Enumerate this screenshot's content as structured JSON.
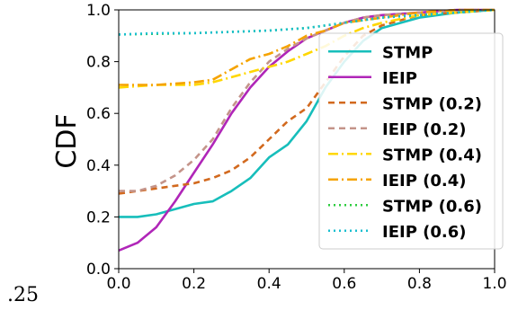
{
  "corner_text": ".25",
  "chart_data": {
    "type": "line",
    "xlabel": "",
    "ylabel": "CDF",
    "xlim": [
      0.0,
      1.0
    ],
    "ylim": [
      0.0,
      1.0
    ],
    "x_ticks": [
      "0.0",
      "0.2",
      "0.4",
      "0.6",
      "0.8",
      "1.0"
    ],
    "y_ticks": [
      "0.0",
      "0.2",
      "0.4",
      "0.6",
      "0.8",
      "1.0"
    ],
    "grid": false,
    "legend_position": "right",
    "series": [
      {
        "name": "STMP",
        "color": "#17bebb",
        "dash": "solid",
        "x": [
          0.0,
          0.05,
          0.1,
          0.15,
          0.2,
          0.25,
          0.3,
          0.35,
          0.4,
          0.45,
          0.5,
          0.55,
          0.6,
          0.65,
          0.7,
          0.8,
          0.9,
          1.0
        ],
        "y": [
          0.2,
          0.2,
          0.21,
          0.23,
          0.25,
          0.26,
          0.3,
          0.35,
          0.43,
          0.48,
          0.57,
          0.7,
          0.8,
          0.88,
          0.93,
          0.97,
          0.99,
          1.0
        ]
      },
      {
        "name": "IEIP",
        "color": "#b026b8",
        "dash": "solid",
        "x": [
          0.0,
          0.05,
          0.1,
          0.15,
          0.2,
          0.25,
          0.3,
          0.35,
          0.4,
          0.45,
          0.5,
          0.55,
          0.6,
          0.65,
          0.7,
          0.8,
          0.9,
          1.0
        ],
        "y": [
          0.07,
          0.1,
          0.16,
          0.26,
          0.37,
          0.48,
          0.6,
          0.7,
          0.78,
          0.84,
          0.89,
          0.92,
          0.95,
          0.97,
          0.98,
          0.99,
          1.0,
          1.0
        ]
      },
      {
        "name": "STMP (0.2)",
        "color": "#d2691e",
        "dash": "7,5",
        "x": [
          0.0,
          0.05,
          0.1,
          0.15,
          0.2,
          0.25,
          0.3,
          0.35,
          0.4,
          0.45,
          0.5,
          0.55,
          0.6,
          0.65,
          0.7,
          0.8,
          0.9,
          1.0
        ],
        "y": [
          0.29,
          0.3,
          0.31,
          0.32,
          0.33,
          0.35,
          0.38,
          0.43,
          0.5,
          0.57,
          0.62,
          0.72,
          0.82,
          0.9,
          0.94,
          0.98,
          0.99,
          1.0
        ]
      },
      {
        "name": "IEIP (0.2)",
        "color": "#c4948a",
        "dash": "7,5",
        "x": [
          0.0,
          0.05,
          0.1,
          0.15,
          0.2,
          0.25,
          0.3,
          0.35,
          0.4,
          0.45,
          0.5,
          0.55,
          0.6,
          0.65,
          0.7,
          0.8,
          0.9,
          1.0
        ],
        "y": [
          0.3,
          0.3,
          0.32,
          0.36,
          0.42,
          0.5,
          0.62,
          0.72,
          0.8,
          0.85,
          0.89,
          0.92,
          0.95,
          0.97,
          0.98,
          0.99,
          1.0,
          1.0
        ]
      },
      {
        "name": "STMP (0.4)",
        "color": "#ffd700",
        "dash": "11,4,2,4",
        "x": [
          0.0,
          0.1,
          0.2,
          0.25,
          0.3,
          0.35,
          0.4,
          0.45,
          0.5,
          0.55,
          0.6,
          0.65,
          0.7,
          0.8,
          0.9,
          1.0
        ],
        "y": [
          0.7,
          0.71,
          0.71,
          0.72,
          0.74,
          0.76,
          0.78,
          0.8,
          0.83,
          0.86,
          0.9,
          0.93,
          0.95,
          0.98,
          0.99,
          1.0
        ]
      },
      {
        "name": "IEIP (0.4)",
        "color": "#f5a300",
        "dash": "11,4,2,4",
        "x": [
          0.0,
          0.1,
          0.2,
          0.25,
          0.3,
          0.35,
          0.4,
          0.45,
          0.5,
          0.55,
          0.6,
          0.65,
          0.7,
          0.8,
          0.9,
          1.0
        ],
        "y": [
          0.71,
          0.71,
          0.72,
          0.73,
          0.77,
          0.81,
          0.83,
          0.86,
          0.9,
          0.92,
          0.95,
          0.96,
          0.97,
          0.99,
          1.0,
          1.0
        ]
      },
      {
        "name": "STMP (0.6)",
        "color": "#2ecc40",
        "dash": "2,4",
        "x": [
          0.0,
          0.2,
          0.4,
          0.5,
          0.6,
          0.65,
          0.7,
          0.8,
          0.9,
          1.0
        ],
        "y": [
          0.905,
          0.91,
          0.92,
          0.93,
          0.95,
          0.96,
          0.97,
          0.98,
          0.99,
          1.0
        ]
      },
      {
        "name": "IEIP (0.6)",
        "color": "#17becf",
        "dash": "2,4",
        "x": [
          0.0,
          0.1,
          0.2,
          0.3,
          0.4,
          0.5,
          0.6,
          0.65,
          0.7,
          0.8,
          0.9,
          1.0
        ],
        "y": [
          0.905,
          0.91,
          0.91,
          0.915,
          0.92,
          0.93,
          0.95,
          0.96,
          0.97,
          0.98,
          0.99,
          1.0
        ]
      }
    ]
  }
}
